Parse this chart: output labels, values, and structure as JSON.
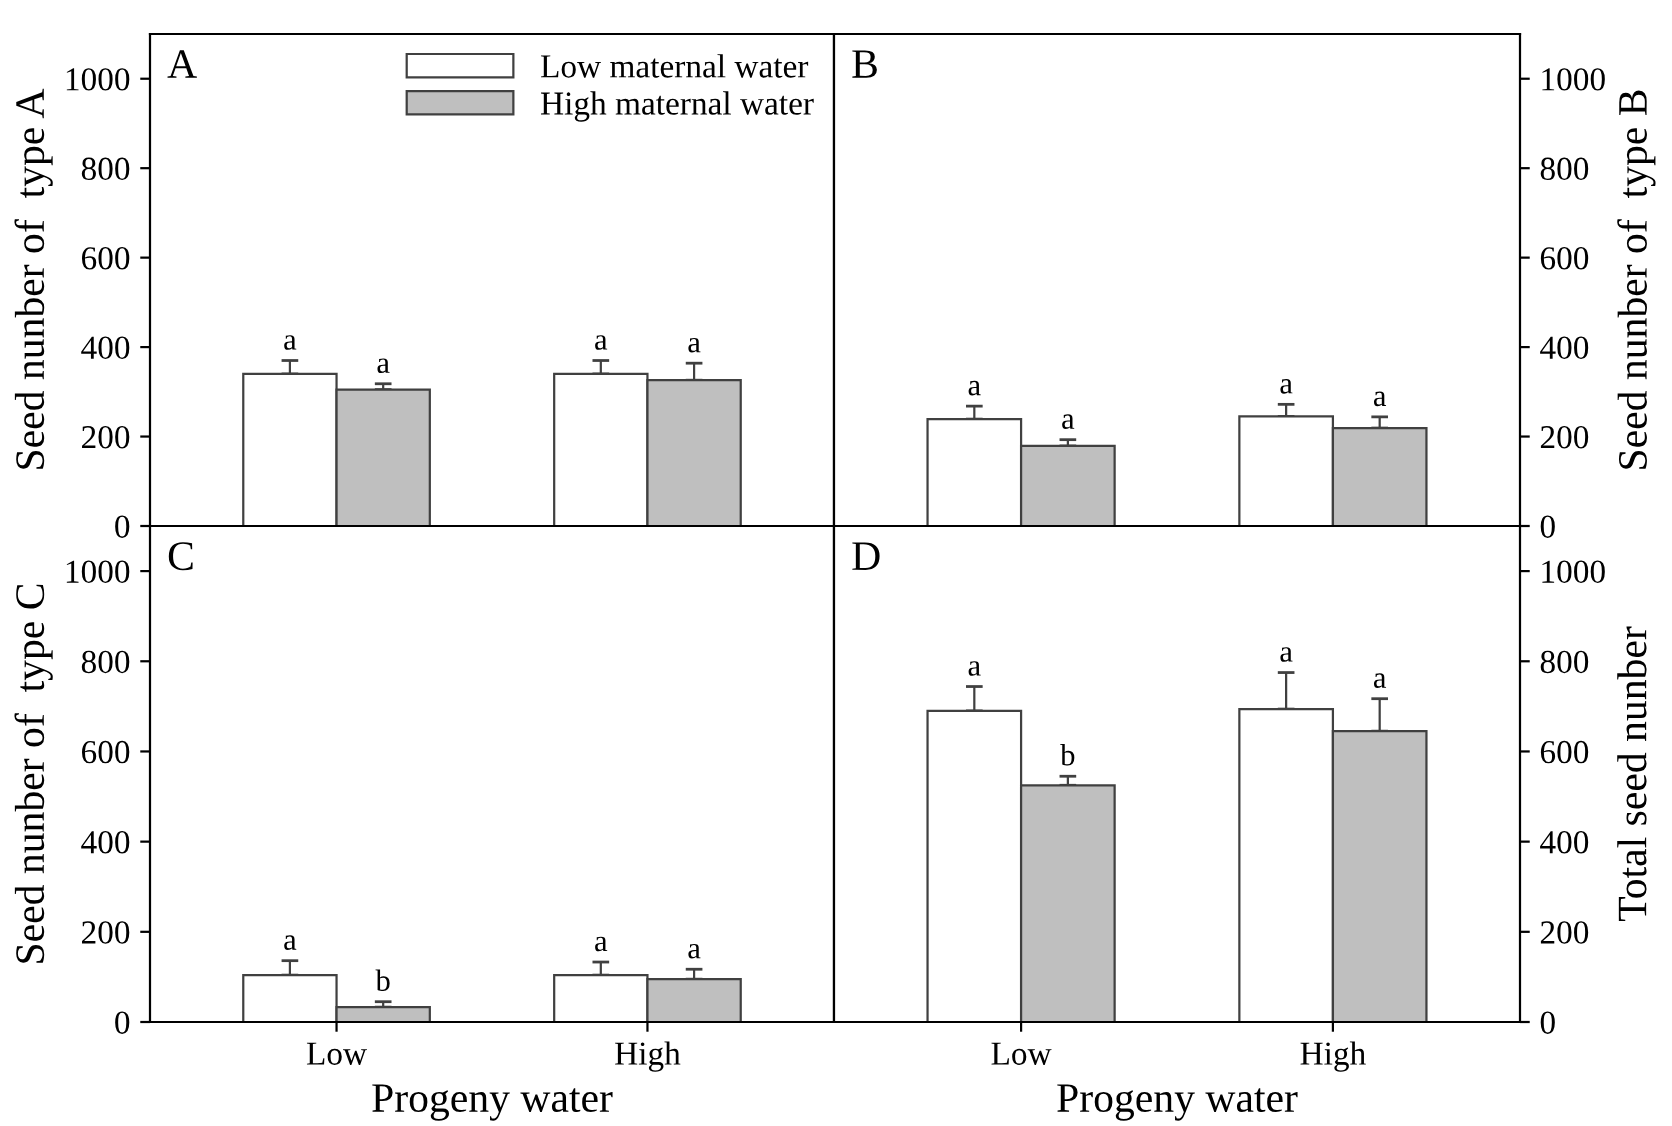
{
  "chart_data": [
    {
      "type": "bar",
      "title": "A",
      "ylabel": "Seed nunber of  type A",
      "categories": [
        null,
        null
      ],
      "ylim": [
        0,
        1100
      ],
      "yticks": [
        0,
        200,
        400,
        600,
        800,
        1000
      ],
      "legend": "top right",
      "series": [
        {
          "name": "Low maternal water",
          "color": "#ffffff",
          "values": [
            340,
            340
          ],
          "errors": [
            30,
            30
          ],
          "value_labels": [
            "a",
            "a"
          ]
        },
        {
          "name": "High maternal water",
          "color": "#bfbfbf",
          "values": [
            305,
            326
          ],
          "errors": [
            13,
            38
          ],
          "value_labels": [
            "a",
            "a"
          ]
        }
      ]
    },
    {
      "type": "bar",
      "title": "B",
      "ylabel": "Seed nunber of  type B",
      "categories": [
        null,
        null
      ],
      "ylim": [
        0,
        1100
      ],
      "yticks": [
        0,
        200,
        400,
        600,
        800,
        1000
      ],
      "series": [
        {
          "color": "#ffffff",
          "values": [
            239,
            245
          ],
          "errors": [
            29,
            27
          ],
          "value_labels": [
            "a",
            "a"
          ]
        },
        {
          "color": "#bfbfbf",
          "values": [
            179,
            219
          ],
          "errors": [
            14,
            25
          ],
          "value_labels": [
            "a",
            "a"
          ]
        }
      ]
    },
    {
      "type": "bar",
      "title": "C",
      "ylabel": "Seed nunber of  type C",
      "xlabel": "Progeny water",
      "categories": [
        "Low",
        "High"
      ],
      "ylim": [
        0,
        1100
      ],
      "yticks": [
        0,
        200,
        400,
        600,
        800,
        1000
      ],
      "series": [
        {
          "color": "#ffffff",
          "values": [
            104,
            104
          ],
          "errors": [
            32,
            29
          ],
          "value_labels": [
            "a",
            "a"
          ]
        },
        {
          "color": "#bfbfbf",
          "values": [
            33,
            95
          ],
          "errors": [
            12,
            22
          ],
          "value_labels": [
            "b",
            "a"
          ]
        }
      ]
    },
    {
      "type": "bar",
      "title": "D",
      "ylabel": "Total seed nunber",
      "xlabel": "Progeny water",
      "categories": [
        "Low",
        "High"
      ],
      "ylim": [
        0,
        1100
      ],
      "yticks": [
        0,
        200,
        400,
        600,
        800,
        1000
      ],
      "series": [
        {
          "color": "#ffffff",
          "values": [
            690,
            694
          ],
          "errors": [
            54,
            81
          ],
          "value_labels": [
            "a",
            "a"
          ]
        },
        {
          "color": "#bfbfbf",
          "values": [
            525,
            645
          ],
          "errors": [
            20,
            72
          ],
          "value_labels": [
            "b",
            "a"
          ]
        }
      ]
    }
  ]
}
